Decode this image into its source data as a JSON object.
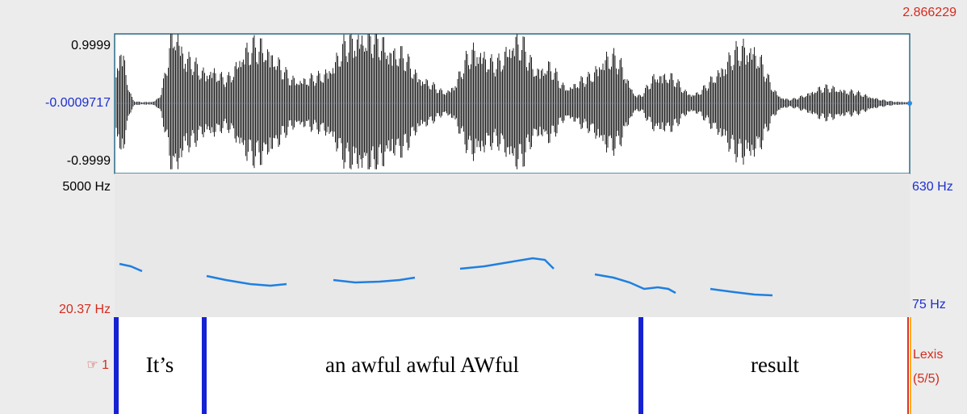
{
  "time_end": "2.866229",
  "waveform": {
    "ymax_label": "0.9999",
    "ymid_label": "-0.0009717",
    "ymin_label": "-0.9999"
  },
  "spectrogram": {
    "fmax": "5000 Hz",
    "fmin": "20.37 Hz",
    "pitch_max": "630 Hz",
    "pitch_min": "75 Hz"
  },
  "tier": {
    "number": "☞ 1",
    "name": "Lexis",
    "count": "(5/5)",
    "intervals": [
      "It’s",
      "an awful awful AWful",
      "result"
    ]
  }
}
